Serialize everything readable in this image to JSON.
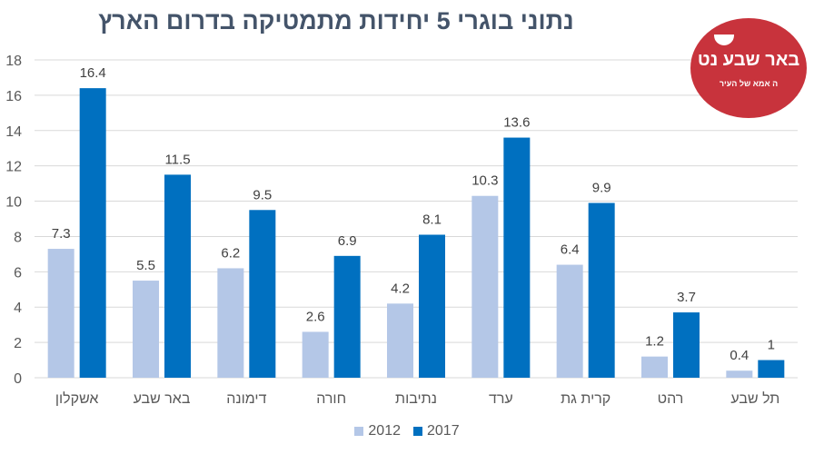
{
  "chart_data": {
    "type": "bar",
    "title": "נתוני בוגרי 5 יחידות מתמטיקה בדרום הארץ",
    "categories": [
      "אשקלון",
      "באר שבע",
      "דימונה",
      "חורה",
      "נתיבות",
      "ערד",
      "קרית גת",
      "רהט",
      "תל שבע"
    ],
    "series": [
      {
        "name": "2012",
        "color": "#b4c7e7",
        "values": [
          7.3,
          5.5,
          6.2,
          2.6,
          4.2,
          10.3,
          6.4,
          1.2,
          0.4
        ]
      },
      {
        "name": "2017",
        "color": "#0070c0",
        "values": [
          16.4,
          11.5,
          9.5,
          6.9,
          8.1,
          13.6,
          9.9,
          3.7,
          1
        ]
      }
    ],
    "ylim": [
      0,
      18
    ],
    "yticks": [
      0,
      2,
      4,
      6,
      8,
      10,
      12,
      14,
      16,
      18
    ],
    "grid": true,
    "legend": "bottom"
  },
  "logo": {
    "main": "באר שבע נט",
    "sub": "ה אמא של העיר"
  }
}
